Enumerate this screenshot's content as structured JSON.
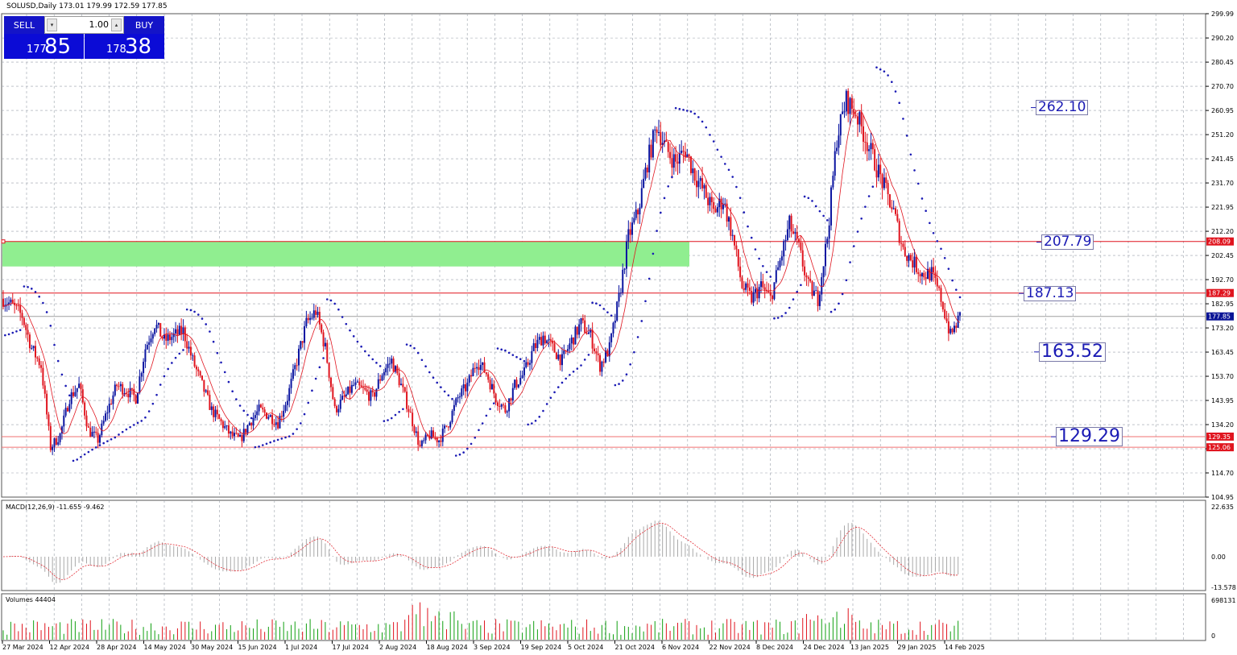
{
  "header": {
    "chart_title": "SOLUSD,Daily  173.01 179.99 172.59 177.85",
    "macd_label": "MACD(12,26,9) -11.655 -9.462",
    "volumes_label": "Volumes 44404"
  },
  "trade_panel": {
    "sell_label": "SELL",
    "buy_label": "BUY",
    "lot_value": "1.00",
    "sell_price_small": "177",
    "sell_price_big": "85",
    "buy_price_small": "178",
    "buy_price_big": "38"
  },
  "price_axis": [
    "299.99",
    "290.20",
    "280.45",
    "270.70",
    "260.95",
    "251.20",
    "241.45",
    "231.70",
    "221.95",
    "212.20",
    "202.45",
    "192.70",
    "182.95",
    "173.20",
    "163.45",
    "153.70",
    "143.95",
    "134.20",
    "124.45",
    "114.70",
    "104.95"
  ],
  "price_badges": [
    {
      "value": "208.09",
      "price": 208.09,
      "color": "#e0141e"
    },
    {
      "value": "187.29",
      "price": 187.29,
      "color": "#e0141e"
    },
    {
      "value": "177.85",
      "price": 177.85,
      "color": "#0a1496"
    },
    {
      "value": "129.35",
      "price": 129.35,
      "color": "#e0141e"
    },
    {
      "value": "125.06",
      "price": 125.06,
      "color": "#e0141e"
    }
  ],
  "macd_axis": [
    "22.635",
    "0.00",
    "-13.578"
  ],
  "volume_axis": [
    "698131",
    "0"
  ],
  "date_axis": [
    "27 Mar 2024",
    "12 Apr 2024",
    "28 Apr 2024",
    "14 May 2024",
    "30 May 2024",
    "15 Jun 2024",
    "1 Jul 2024",
    "17 Jul 2024",
    "2 Aug 2024",
    "18 Aug 2024",
    "3 Sep 2024",
    "19 Sep 2024",
    "5 Oct 2024",
    "21 Oct 2024",
    "6 Nov 2024",
    "22 Nov 2024",
    "8 Dec 2024",
    "24 Dec 2024",
    "13 Jan 2025",
    "29 Jan 2025",
    "14 Feb 2025"
  ],
  "level_labels": [
    {
      "text": "262.10",
      "price": 262.1,
      "size": "big"
    },
    {
      "text": "207.79",
      "price": 207.79,
      "size": "big"
    },
    {
      "text": "187.13",
      "price": 187.13,
      "size": "big"
    },
    {
      "text": "163.52",
      "price": 163.52,
      "size": "large"
    },
    {
      "text": "129.29",
      "price": 129.29,
      "size": "large"
    }
  ],
  "zone": {
    "from": 198.0,
    "to": 208.09,
    "color": "#90ee90"
  },
  "colors": {
    "bull": "#0a14a0",
    "bear": "#e0141e",
    "sar": "#1a1ab4",
    "ma": "#e0141e",
    "grid": "#9aa0aa"
  },
  "chart_data": {
    "type": "candlestick",
    "symbol": "SOLUSD",
    "timeframe": "Daily",
    "last_ohlc": {
      "open": 173.01,
      "high": 179.99,
      "low": 172.59,
      "close": 177.85
    },
    "ylim": [
      104.95,
      299.99
    ],
    "close_path": [
      [
        0,
        185
      ],
      [
        5,
        182
      ],
      [
        10,
        178
      ],
      [
        15,
        165
      ],
      [
        20,
        158
      ],
      [
        25,
        125
      ],
      [
        30,
        130
      ],
      [
        35,
        145
      ],
      [
        40,
        150
      ],
      [
        45,
        132
      ],
      [
        50,
        128
      ],
      [
        55,
        140
      ],
      [
        60,
        150
      ],
      [
        65,
        148
      ],
      [
        70,
        145
      ],
      [
        75,
        165
      ],
      [
        80,
        175
      ],
      [
        85,
        168
      ],
      [
        90,
        170
      ],
      [
        95,
        172
      ],
      [
        100,
        160
      ],
      [
        105,
        150
      ],
      [
        110,
        140
      ],
      [
        115,
        135
      ],
      [
        120,
        130
      ],
      [
        125,
        128
      ],
      [
        130,
        135
      ],
      [
        135,
        140
      ],
      [
        140,
        138
      ],
      [
        145,
        135
      ],
      [
        150,
        145
      ],
      [
        155,
        160
      ],
      [
        160,
        175
      ],
      [
        165,
        180
      ],
      [
        170,
        165
      ],
      [
        175,
        140
      ],
      [
        180,
        145
      ],
      [
        185,
        150
      ],
      [
        190,
        148
      ],
      [
        195,
        145
      ],
      [
        200,
        155
      ],
      [
        205,
        160
      ],
      [
        210,
        150
      ],
      [
        215,
        138
      ],
      [
        220,
        125
      ],
      [
        225,
        130
      ],
      [
        230,
        128
      ],
      [
        235,
        135
      ],
      [
        240,
        145
      ],
      [
        245,
        150
      ],
      [
        250,
        160
      ],
      [
        255,
        155
      ],
      [
        260,
        145
      ],
      [
        265,
        140
      ],
      [
        270,
        150
      ],
      [
        275,
        155
      ],
      [
        280,
        165
      ],
      [
        285,
        170
      ],
      [
        290,
        165
      ],
      [
        295,
        160
      ],
      [
        300,
        168
      ],
      [
        305,
        175
      ],
      [
        310,
        170
      ],
      [
        315,
        158
      ],
      [
        320,
        165
      ],
      [
        325,
        185
      ],
      [
        330,
        210
      ],
      [
        335,
        220
      ],
      [
        340,
        240
      ],
      [
        345,
        255
      ],
      [
        350,
        245
      ],
      [
        355,
        240
      ],
      [
        360,
        245
      ],
      [
        365,
        235
      ],
      [
        370,
        228
      ],
      [
        375,
        220
      ],
      [
        380,
        225
      ],
      [
        385,
        210
      ],
      [
        390,
        190
      ],
      [
        395,
        185
      ],
      [
        400,
        190
      ],
      [
        405,
        185
      ],
      [
        410,
        200
      ],
      [
        415,
        215
      ],
      [
        420,
        205
      ],
      [
        425,
        190
      ],
      [
        430,
        185
      ],
      [
        435,
        210
      ],
      [
        440,
        250
      ],
      [
        445,
        265
      ],
      [
        450,
        260
      ],
      [
        455,
        250
      ],
      [
        460,
        240
      ],
      [
        465,
        230
      ],
      [
        470,
        220
      ],
      [
        475,
        205
      ],
      [
        480,
        200
      ],
      [
        485,
        195
      ],
      [
        490,
        195
      ],
      [
        495,
        185
      ],
      [
        500,
        170
      ],
      [
        505,
        177.85
      ]
    ],
    "indicators": [
      "Parabolic SAR",
      "Moving Average",
      "MACD(12,26,9)",
      "Volumes"
    ]
  }
}
